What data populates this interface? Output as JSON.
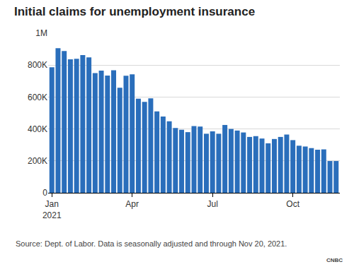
{
  "chart_data": {
    "type": "bar",
    "title": "Initial claims for unemployment insurance",
    "source": "Source: Dept. of Labor. Data is seasonally adjusted and through Nov 20, 2021.",
    "logo": "CNBC",
    "categories": [
      "Jan\n2021",
      null,
      null,
      null,
      null,
      null,
      null,
      null,
      null,
      null,
      null,
      null,
      null,
      "Apr",
      null,
      null,
      null,
      null,
      null,
      null,
      null,
      null,
      null,
      null,
      null,
      null,
      "Jul",
      null,
      null,
      null,
      null,
      null,
      null,
      null,
      null,
      null,
      null,
      null,
      null,
      "Oct",
      null,
      null,
      null,
      null,
      null,
      null,
      null
    ],
    "values": [
      787000,
      906000,
      888000,
      836000,
      840000,
      863000,
      848000,
      750000,
      765000,
      735000,
      768000,
      658000,
      733000,
      742000,
      590000,
      570000,
      592000,
      510000,
      478000,
      448000,
      406000,
      395000,
      380000,
      418000,
      415000,
      370000,
      385000,
      370000,
      425000,
      400000,
      390000,
      378000,
      350000,
      355000,
      340000,
      310000,
      337000,
      350000,
      365000,
      330000,
      295000,
      290000,
      280000,
      270000,
      272000,
      199000,
      199000
    ],
    "color": "#2a6ebb",
    "ylim": [
      0,
      1000000
    ],
    "yticks": [
      0,
      {
        "value": 200000,
        "label": "200K"
      },
      {
        "value": 400000,
        "label": "400K"
      },
      {
        "value": 600000,
        "label": "600K"
      },
      {
        "value": 800000,
        "label": "800K"
      },
      {
        "value": 1000000,
        "label": "1M"
      }
    ],
    "grid": true
  }
}
